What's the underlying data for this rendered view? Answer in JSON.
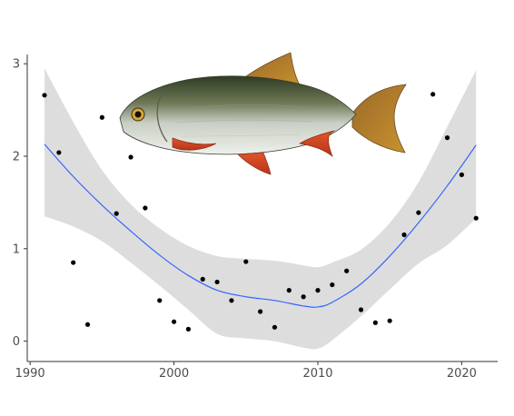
{
  "chart_data": {
    "type": "scatter",
    "title": "",
    "xlabel": "",
    "ylabel": "",
    "xlim": [
      1989.8,
      2022.5
    ],
    "ylim": [
      -0.22,
      3.1
    ],
    "x_ticks": [
      1990,
      2000,
      2010,
      2020
    ],
    "y_ticks": [
      0,
      1,
      2,
      3
    ],
    "grid": false,
    "legend": "none",
    "colors": {
      "points": "#000000",
      "smooth_line": "#3366ff",
      "confidence_band": "#d9d9d9",
      "axis": "#333333"
    },
    "points": {
      "x": [
        1991,
        1992,
        1993,
        1994,
        1995,
        1996,
        1997,
        1998,
        1999,
        2000,
        2001,
        2002,
        2003,
        2004,
        2005,
        2006,
        2007,
        2008,
        2009,
        2010,
        2011,
        2012,
        2013,
        2014,
        2015,
        2016,
        2017,
        2018,
        2019,
        2020,
        2021
      ],
      "y": [
        2.66,
        2.04,
        0.85,
        0.18,
        2.42,
        1.38,
        1.99,
        1.44,
        0.44,
        0.21,
        0.13,
        0.67,
        0.64,
        0.44,
        0.86,
        0.32,
        0.15,
        0.55,
        0.48,
        0.55,
        0.61,
        0.76,
        0.34,
        0.2,
        0.22,
        1.15,
        1.39,
        2.67,
        2.2,
        1.8,
        1.33
      ]
    },
    "smooth": {
      "x": [
        1991,
        1993,
        1995,
        1997,
        1999,
        2001,
        2003,
        2005,
        2007,
        2009,
        2010,
        2011,
        2013,
        2015,
        2017,
        2019,
        2021
      ],
      "y": [
        2.13,
        1.78,
        1.47,
        1.19,
        0.93,
        0.71,
        0.55,
        0.48,
        0.44,
        0.38,
        0.37,
        0.42,
        0.62,
        0.92,
        1.28,
        1.68,
        2.12
      ],
      "lower": [
        1.35,
        1.24,
        1.08,
        0.85,
        0.6,
        0.34,
        0.08,
        0.03,
        0.0,
        -0.07,
        -0.08,
        0.01,
        0.27,
        0.56,
        0.84,
        1.04,
        1.33
      ],
      "upper": [
        2.95,
        2.37,
        1.85,
        1.48,
        1.22,
        1.03,
        0.92,
        0.89,
        0.87,
        0.82,
        0.8,
        0.85,
        0.99,
        1.28,
        1.72,
        2.32,
        2.93
      ]
    },
    "illustration": "fish-illustration"
  }
}
